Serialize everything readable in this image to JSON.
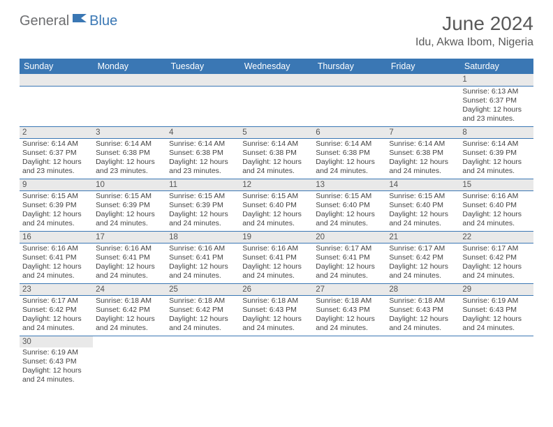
{
  "brand": {
    "part1": "General",
    "part2": "Blue"
  },
  "title": "June 2024",
  "location": "Idu, Akwa Ibom, Nigeria",
  "colors": {
    "header_bg": "#3a77b4",
    "header_fg": "#ffffff",
    "daynum_bg": "#e9e9e9",
    "text": "#444444",
    "title": "#595959",
    "rule": "#3a77b4"
  },
  "dayNames": [
    "Sunday",
    "Monday",
    "Tuesday",
    "Wednesday",
    "Thursday",
    "Friday",
    "Saturday"
  ],
  "weeks": [
    [
      null,
      null,
      null,
      null,
      null,
      null,
      {
        "n": "1",
        "sr": "6:13 AM",
        "ss": "6:37 PM",
        "dl": "12 hours and 23 minutes."
      }
    ],
    [
      {
        "n": "2",
        "sr": "6:14 AM",
        "ss": "6:37 PM",
        "dl": "12 hours and 23 minutes."
      },
      {
        "n": "3",
        "sr": "6:14 AM",
        "ss": "6:38 PM",
        "dl": "12 hours and 23 minutes."
      },
      {
        "n": "4",
        "sr": "6:14 AM",
        "ss": "6:38 PM",
        "dl": "12 hours and 23 minutes."
      },
      {
        "n": "5",
        "sr": "6:14 AM",
        "ss": "6:38 PM",
        "dl": "12 hours and 24 minutes."
      },
      {
        "n": "6",
        "sr": "6:14 AM",
        "ss": "6:38 PM",
        "dl": "12 hours and 24 minutes."
      },
      {
        "n": "7",
        "sr": "6:14 AM",
        "ss": "6:38 PM",
        "dl": "12 hours and 24 minutes."
      },
      {
        "n": "8",
        "sr": "6:14 AM",
        "ss": "6:39 PM",
        "dl": "12 hours and 24 minutes."
      }
    ],
    [
      {
        "n": "9",
        "sr": "6:15 AM",
        "ss": "6:39 PM",
        "dl": "12 hours and 24 minutes."
      },
      {
        "n": "10",
        "sr": "6:15 AM",
        "ss": "6:39 PM",
        "dl": "12 hours and 24 minutes."
      },
      {
        "n": "11",
        "sr": "6:15 AM",
        "ss": "6:39 PM",
        "dl": "12 hours and 24 minutes."
      },
      {
        "n": "12",
        "sr": "6:15 AM",
        "ss": "6:40 PM",
        "dl": "12 hours and 24 minutes."
      },
      {
        "n": "13",
        "sr": "6:15 AM",
        "ss": "6:40 PM",
        "dl": "12 hours and 24 minutes."
      },
      {
        "n": "14",
        "sr": "6:15 AM",
        "ss": "6:40 PM",
        "dl": "12 hours and 24 minutes."
      },
      {
        "n": "15",
        "sr": "6:16 AM",
        "ss": "6:40 PM",
        "dl": "12 hours and 24 minutes."
      }
    ],
    [
      {
        "n": "16",
        "sr": "6:16 AM",
        "ss": "6:41 PM",
        "dl": "12 hours and 24 minutes."
      },
      {
        "n": "17",
        "sr": "6:16 AM",
        "ss": "6:41 PM",
        "dl": "12 hours and 24 minutes."
      },
      {
        "n": "18",
        "sr": "6:16 AM",
        "ss": "6:41 PM",
        "dl": "12 hours and 24 minutes."
      },
      {
        "n": "19",
        "sr": "6:16 AM",
        "ss": "6:41 PM",
        "dl": "12 hours and 24 minutes."
      },
      {
        "n": "20",
        "sr": "6:17 AM",
        "ss": "6:41 PM",
        "dl": "12 hours and 24 minutes."
      },
      {
        "n": "21",
        "sr": "6:17 AM",
        "ss": "6:42 PM",
        "dl": "12 hours and 24 minutes."
      },
      {
        "n": "22",
        "sr": "6:17 AM",
        "ss": "6:42 PM",
        "dl": "12 hours and 24 minutes."
      }
    ],
    [
      {
        "n": "23",
        "sr": "6:17 AM",
        "ss": "6:42 PM",
        "dl": "12 hours and 24 minutes."
      },
      {
        "n": "24",
        "sr": "6:18 AM",
        "ss": "6:42 PM",
        "dl": "12 hours and 24 minutes."
      },
      {
        "n": "25",
        "sr": "6:18 AM",
        "ss": "6:42 PM",
        "dl": "12 hours and 24 minutes."
      },
      {
        "n": "26",
        "sr": "6:18 AM",
        "ss": "6:43 PM",
        "dl": "12 hours and 24 minutes."
      },
      {
        "n": "27",
        "sr": "6:18 AM",
        "ss": "6:43 PM",
        "dl": "12 hours and 24 minutes."
      },
      {
        "n": "28",
        "sr": "6:18 AM",
        "ss": "6:43 PM",
        "dl": "12 hours and 24 minutes."
      },
      {
        "n": "29",
        "sr": "6:19 AM",
        "ss": "6:43 PM",
        "dl": "12 hours and 24 minutes."
      }
    ],
    [
      {
        "n": "30",
        "sr": "6:19 AM",
        "ss": "6:43 PM",
        "dl": "12 hours and 24 minutes."
      },
      null,
      null,
      null,
      null,
      null,
      null
    ]
  ],
  "labels": {
    "sunrise": "Sunrise:",
    "sunset": "Sunset:",
    "daylight": "Daylight:"
  }
}
